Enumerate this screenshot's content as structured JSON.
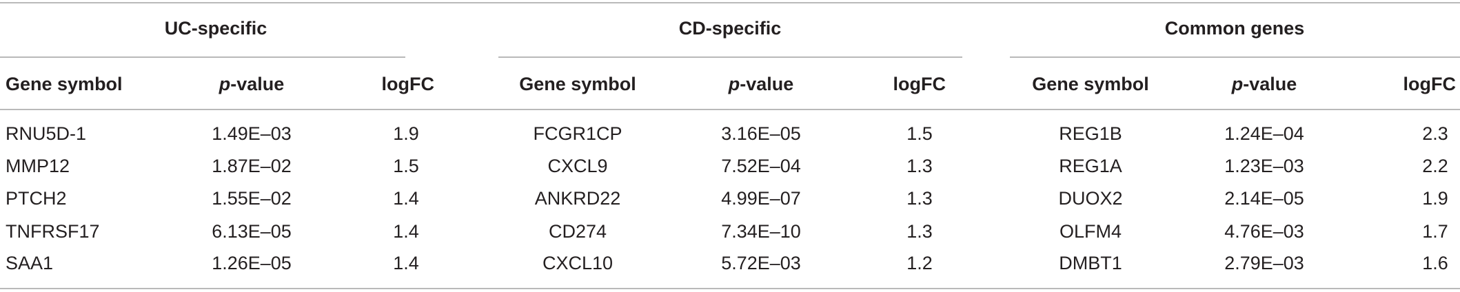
{
  "groups": [
    {
      "title": "UC-specific",
      "headers": {
        "gene": "Gene symbol",
        "p_italic": "p",
        "p_rest": "-value",
        "logfc": "logFC"
      },
      "rows": [
        {
          "gene": "RNU5D-1",
          "p": "1.49E–03",
          "logfc": "1.9"
        },
        {
          "gene": "MMP12",
          "p": "1.87E–02",
          "logfc": "1.5"
        },
        {
          "gene": "PTCH2",
          "p": "1.55E–02",
          "logfc": "1.4"
        },
        {
          "gene": "TNFRSF17",
          "p": "6.13E–05",
          "logfc": "1.4"
        },
        {
          "gene": "SAA1",
          "p": "1.26E–05",
          "logfc": "1.4"
        }
      ]
    },
    {
      "title": "CD-specific",
      "headers": {
        "gene": "Gene symbol",
        "p_italic": "p",
        "p_rest": "-value",
        "logfc": "logFC"
      },
      "rows": [
        {
          "gene": "FCGR1CP",
          "p": "3.16E–05",
          "logfc": "1.5"
        },
        {
          "gene": "CXCL9",
          "p": "7.52E–04",
          "logfc": "1.3"
        },
        {
          "gene": "ANKRD22",
          "p": "4.99E–07",
          "logfc": "1.3"
        },
        {
          "gene": "CD274",
          "p": "7.34E–10",
          "logfc": "1.3"
        },
        {
          "gene": "CXCL10",
          "p": "5.72E–03",
          "logfc": "1.2"
        }
      ]
    },
    {
      "title": "Common genes",
      "headers": {
        "gene": "Gene symbol",
        "p_italic": "p",
        "p_rest": "-value",
        "logfc": "logFC"
      },
      "rows": [
        {
          "gene": "REG1B",
          "p": "1.24E–04",
          "logfc": "2.3"
        },
        {
          "gene": "REG1A",
          "p": "1.23E–03",
          "logfc": "2.2"
        },
        {
          "gene": "DUOX2",
          "p": "2.14E–05",
          "logfc": "1.9"
        },
        {
          "gene": "OLFM4",
          "p": "4.76E–03",
          "logfc": "1.7"
        },
        {
          "gene": "DMBT1",
          "p": "2.79E–03",
          "logfc": "1.6"
        }
      ]
    }
  ]
}
